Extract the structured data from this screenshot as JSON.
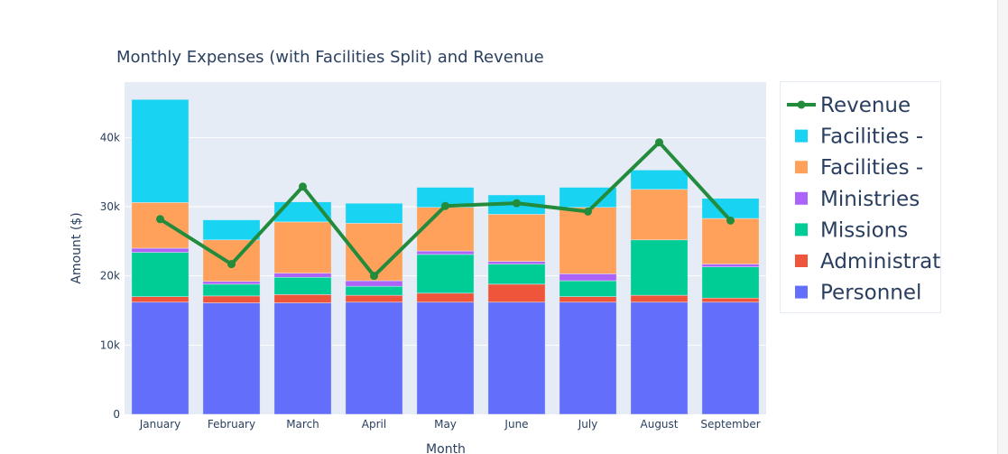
{
  "chart_data": {
    "type": "bar",
    "title": "Monthly Expenses (with Facilities Split) and Revenue",
    "xlabel": "Month",
    "ylabel": "Amount ($)",
    "ylim": [
      0,
      48000
    ],
    "yticks": [
      0,
      10000,
      20000,
      30000,
      40000
    ],
    "ytick_labels": [
      "0",
      "10k",
      "20k",
      "30k",
      "40k"
    ],
    "grid": true,
    "legend_position": "right",
    "categories": [
      "January",
      "February",
      "March",
      "April",
      "May",
      "June",
      "July",
      "August",
      "September"
    ],
    "series": [
      {
        "name": "Personnel",
        "kind": "bar",
        "color": "#636efa",
        "values": [
          16200,
          16100,
          16100,
          16200,
          16200,
          16200,
          16200,
          16200,
          16200
        ]
      },
      {
        "name": "Administrat",
        "kind": "bar",
        "color": "#ef553b",
        "values": [
          800,
          1000,
          1200,
          1000,
          1300,
          2600,
          800,
          1000,
          600
        ]
      },
      {
        "name": "Missions",
        "kind": "bar",
        "color": "#00cc96",
        "values": [
          6400,
          1700,
          2500,
          1300,
          5600,
          2900,
          2300,
          8000,
          4500
        ]
      },
      {
        "name": "Ministries",
        "kind": "bar",
        "color": "#ab63fa",
        "values": [
          600,
          400,
          600,
          800,
          500,
          400,
          1000,
          0,
          400
        ]
      },
      {
        "name": "Facilities -",
        "kind": "bar",
        "color": "#ffa15a",
        "values": [
          6600,
          6000,
          7400,
          8300,
          6300,
          6800,
          9600,
          7300,
          6600
        ]
      },
      {
        "name": "Facilities -",
        "kind": "bar",
        "color": "#19d3f3",
        "values": [
          14900,
          2900,
          2900,
          2900,
          2900,
          2800,
          2900,
          2800,
          2900
        ]
      },
      {
        "name": "Revenue",
        "kind": "line",
        "color": "#228b3c",
        "values": [
          28200,
          21700,
          32900,
          20000,
          30100,
          30500,
          29300,
          39300,
          28000
        ]
      }
    ]
  }
}
